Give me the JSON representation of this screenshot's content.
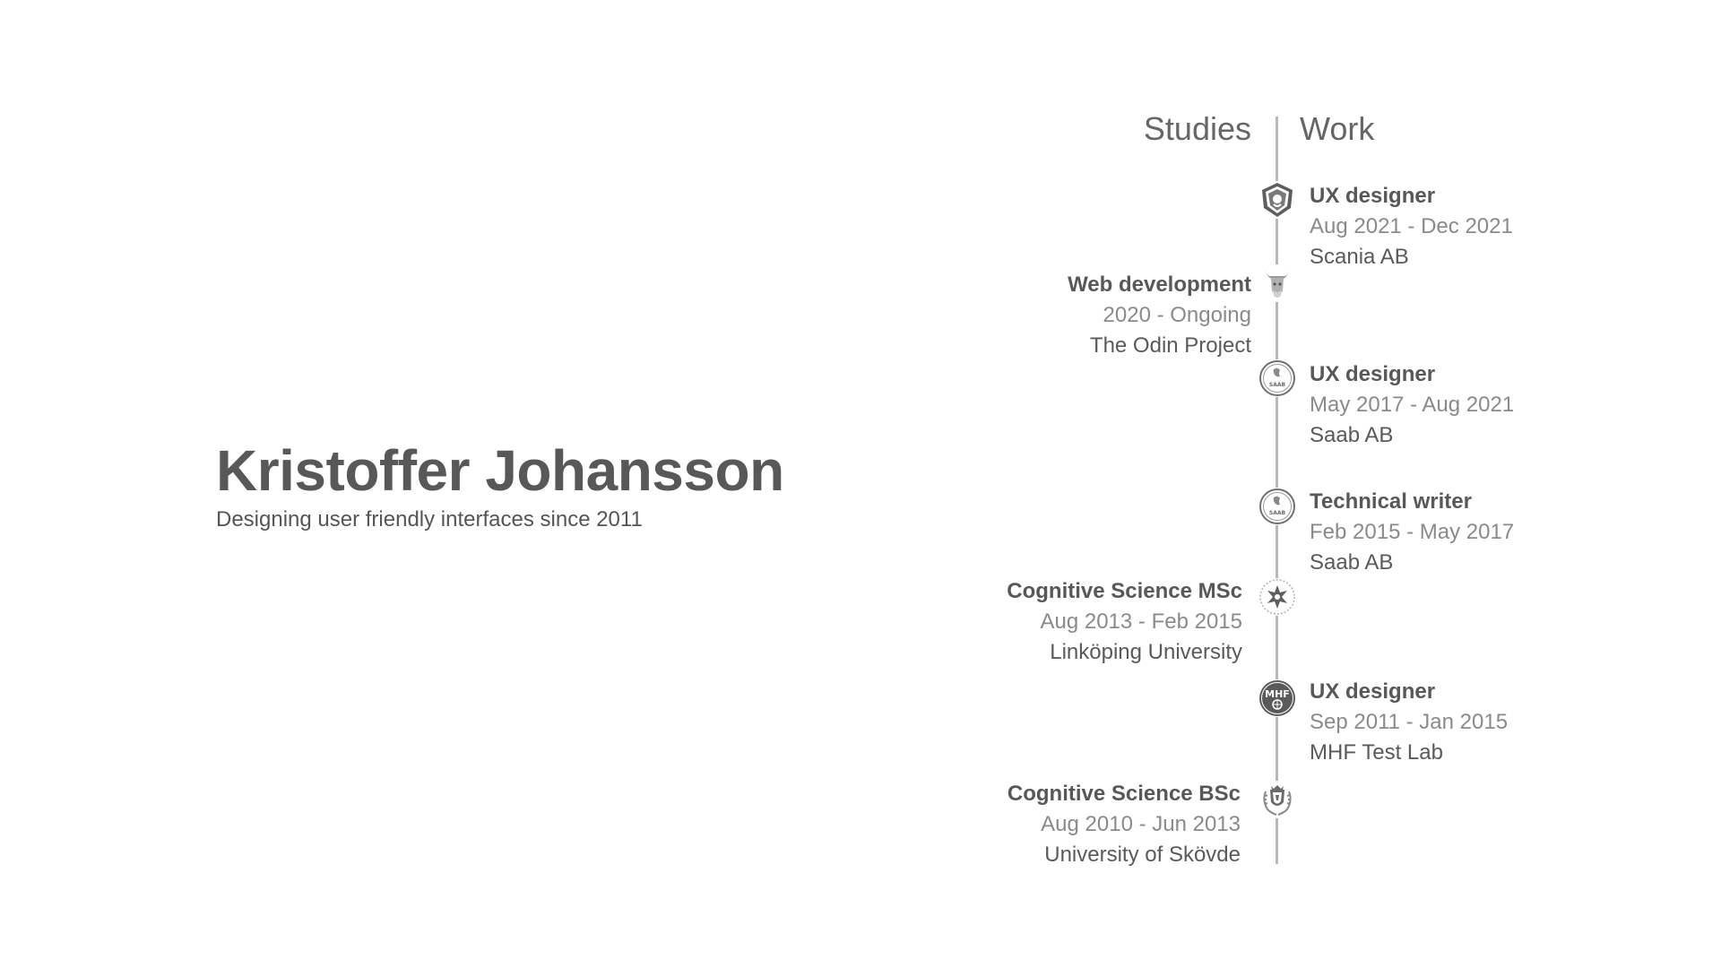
{
  "profile": {
    "name": "Kristoffer Johansson",
    "tagline": "Designing user friendly interfaces since 2011"
  },
  "timeline": {
    "studies_heading": "Studies",
    "work_heading": "Work",
    "work": [
      {
        "role": "UX designer",
        "dates": "Aug 2021 - Dec 2021",
        "org": "Scania AB",
        "icon": "scania-logo-icon"
      },
      {
        "role": "UX designer",
        "dates": "May 2017 - Aug 2021",
        "org": "Saab AB",
        "icon": "saab-logo-icon"
      },
      {
        "role": "Technical writer",
        "dates": "Feb 2015 - May 2017",
        "org": "Saab AB",
        "icon": "saab-logo-icon"
      },
      {
        "role": "UX designer",
        "dates": "Sep 2011 - Jan 2015",
        "org": "MHF Test Lab",
        "icon": "mhf-logo-icon"
      }
    ],
    "studies": [
      {
        "role": "Web development",
        "dates": "2020 - Ongoing",
        "org": "The Odin Project",
        "icon": "odin-project-logo-icon"
      },
      {
        "role": "Cognitive Science MSc",
        "dates": "Aug 2013 - Feb 2015",
        "org": "Linköping University",
        "icon": "linkoping-university-logo-icon"
      },
      {
        "role": "Cognitive Science BSc",
        "dates": "Aug 2010 - Jun 2013",
        "org": "University of Skövde",
        "icon": "skovde-university-logo-icon"
      }
    ],
    "mhf_logo_text": "MHF",
    "saab_logo_text": "SAAB"
  },
  "colors": {
    "text": "#555555",
    "muted": "#8a8a8a",
    "line": "#b8b8b8"
  }
}
